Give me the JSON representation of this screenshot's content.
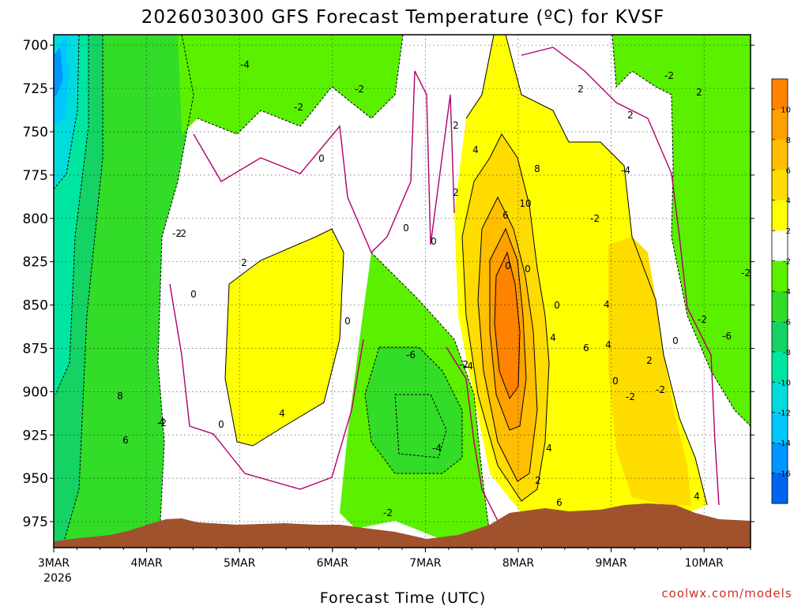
{
  "chart_data": {
    "type": "heatmap",
    "title": "2026030300 GFS Forecast Temperature (ºC) for KVSF",
    "xlabel": "Forecast Time (UTC)",
    "ylabel": "",
    "x_ticks": [
      "3MAR",
      "4MAR",
      "5MAR",
      "6MAR",
      "7MAR",
      "8MAR",
      "9MAR",
      "10MAR"
    ],
    "x_year": "2026",
    "x_range": [
      "2026-03-03 00Z",
      "2026-03-10 12Z"
    ],
    "y_ticks": [
      700,
      725,
      750,
      775,
      800,
      825,
      850,
      875,
      900,
      925,
      950,
      975
    ],
    "y_range_hPa": [
      694,
      990
    ],
    "y_scale": "pressure (inverted)",
    "grid": true,
    "colorbar": {
      "levels": [
        10,
        8,
        6,
        4,
        2,
        -2,
        -4,
        -6,
        -8,
        -10,
        -12,
        -14,
        -16
      ],
      "colors": [
        "#ff8200",
        "#ffa000",
        "#ffbe00",
        "#ffdc00",
        "#ffff00",
        "#ffffff",
        "#5af000",
        "#32dc28",
        "#14d264",
        "#00e6a0",
        "#00dcdc",
        "#00c8ff",
        "#0096ff",
        "#0064f0"
      ]
    },
    "fields": [
      {
        "region": "cold air early 3MAR",
        "values_c": [
          -16,
          -14,
          -12,
          -10,
          -8,
          -6
        ]
      },
      {
        "region": "warm layer 5MAR 825-925 hPa",
        "max_c": 4
      },
      {
        "region": "cool pocket 7MAR 875-925 hPa",
        "min_c": -6
      },
      {
        "region": "warm core 8MAR 825-900 hPa",
        "max_c": 10
      },
      {
        "region": "warm 9MAR 850-950 hPa",
        "max_c": 6
      }
    ],
    "contour_labels": [
      "-4",
      "-2",
      "-2",
      "0",
      "2",
      "0",
      "0",
      "-2",
      "0",
      "-2",
      "0",
      "0",
      "2",
      "4",
      "2",
      "4",
      "8",
      "10",
      "6",
      "0",
      "0",
      "2",
      "2",
      "-2",
      "-4",
      "-2",
      "2",
      "0",
      "4",
      "4",
      "6",
      "4",
      "2",
      "0",
      "-2",
      "-2",
      "0",
      "-2",
      "-6",
      "-2",
      "-4",
      "-6",
      "-4",
      "-2",
      "6",
      "8",
      "4",
      "4",
      "2",
      "6",
      "4",
      "-2",
      "-2"
    ],
    "ground": {
      "color": "#a0522d",
      "meaning": "terrain below surface pressure"
    }
  },
  "credit": "coolwx.com/models"
}
